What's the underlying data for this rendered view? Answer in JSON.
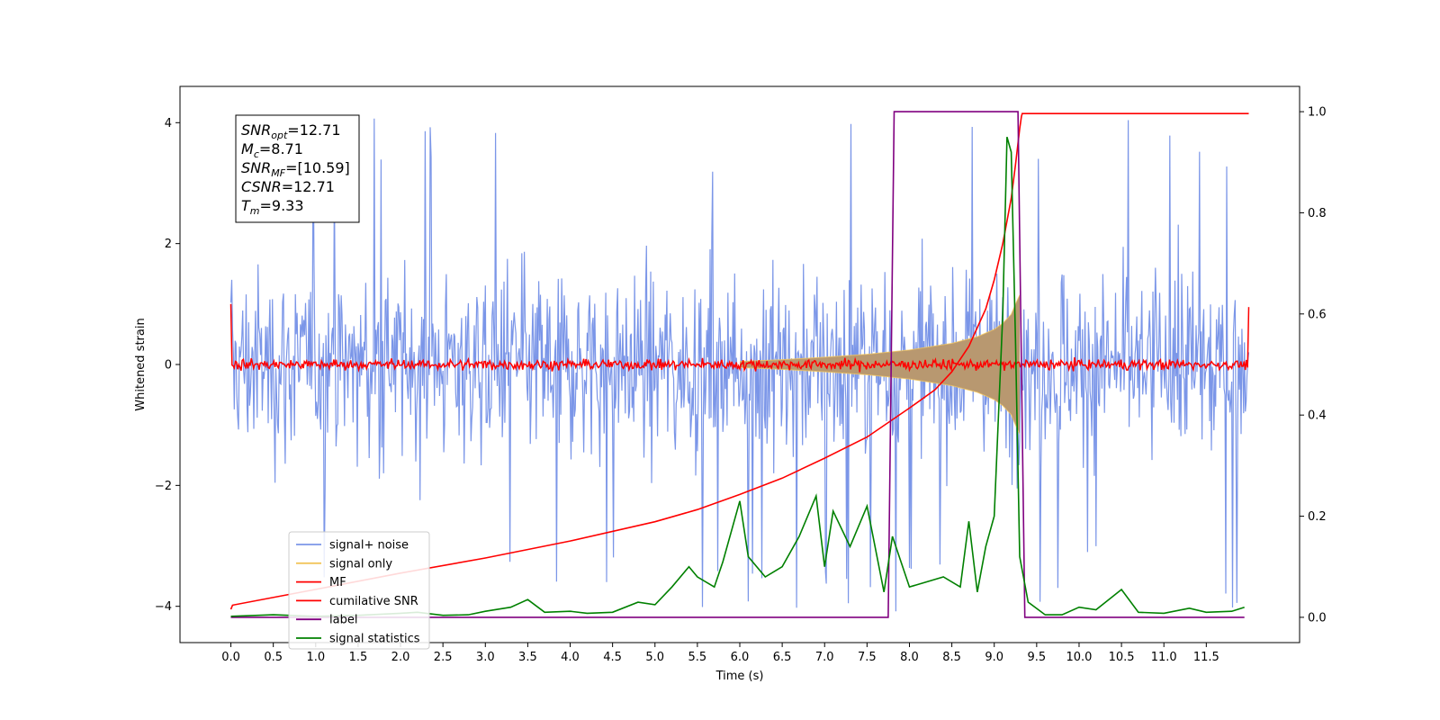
{
  "chart_data": {
    "type": "line",
    "xlabel": "Time (s)",
    "ylabel": "Whitened strain",
    "xlim": [
      -0.6,
      12.6
    ],
    "ylim": [
      -4.6,
      4.6
    ],
    "y2lim": [
      -0.05,
      1.05
    ],
    "xticks": [
      "0.0",
      "0.5",
      "1.0",
      "1.5",
      "2.0",
      "2.5",
      "3.0",
      "3.5",
      "4.0",
      "4.5",
      "5.0",
      "5.5",
      "6.0",
      "6.5",
      "7.0",
      "7.5",
      "8.0",
      "8.5",
      "9.0",
      "9.5",
      "10.0",
      "10.5",
      "11.0",
      "11.5"
    ],
    "yticks": [
      "4",
      "2",
      "0",
      "−2",
      "−4"
    ],
    "y2ticks": [
      "1.0",
      "0.8",
      "0.6",
      "0.4",
      "0.2",
      "0.0"
    ],
    "grid": false,
    "legend_position": "lower-left",
    "colors": {
      "signal_noise": "#7b96e8",
      "signal_only": "#f2c55c",
      "signal_fill": "#b89870",
      "mf": "#ff0000",
      "cumulative_snr": "#ff0000",
      "label": "#800080",
      "signal_statistics": "#008000"
    },
    "info_box": [
      {
        "sym": "SNR",
        "sub": "opt",
        "val": "=12.71"
      },
      {
        "sym": "M",
        "sub": "c",
        "val": "=8.71"
      },
      {
        "sym": "SNR",
        "sub": "MF",
        "val": "=[10.59]"
      },
      {
        "sym": "CSNR",
        "sub": "",
        "val": "=12.71"
      },
      {
        "sym": "T",
        "sub": "m",
        "val": "=9.33"
      }
    ],
    "legend": [
      "signal+ noise",
      "signal only",
      "MF",
      "cumilative SNR",
      "label",
      "signal statistics"
    ],
    "series": [
      {
        "name": "signal+ noise",
        "axis": "left",
        "x_range": [
          0.0,
          12.0
        ],
        "envelope_typical": [
          -2.5,
          2.5
        ],
        "extremes": [
          -4.15,
          4.15
        ],
        "samples_approx": 1200
      },
      {
        "name": "signal only",
        "axis": "left",
        "envelope": {
          "x": [
            6.0,
            6.5,
            7.0,
            7.5,
            8.0,
            8.5,
            8.8,
            9.0,
            9.1,
            9.2,
            9.25,
            9.3
          ],
          "amplitude": [
            0.05,
            0.08,
            0.12,
            0.17,
            0.24,
            0.35,
            0.46,
            0.58,
            0.68,
            0.83,
            1.0,
            1.15
          ]
        }
      },
      {
        "name": "MF",
        "axis": "left",
        "x_range": [
          0.0,
          12.0
        ],
        "baseline": 0.0,
        "noise_amplitude": 0.12,
        "edge_values": [
          1.0,
          0.95
        ]
      },
      {
        "name": "cumilative SNR",
        "axis": "left",
        "x": [
          0.0,
          0.02,
          1.0,
          2.0,
          3.0,
          4.0,
          5.0,
          5.5,
          6.0,
          6.5,
          7.0,
          7.5,
          8.0,
          8.3,
          8.5,
          8.7,
          8.9,
          9.0,
          9.1,
          9.2,
          9.25,
          9.3,
          9.32,
          9.33,
          12.0
        ],
        "values": [
          -4.05,
          -3.98,
          -3.72,
          -3.45,
          -3.2,
          -2.92,
          -2.6,
          -2.4,
          -2.15,
          -1.88,
          -1.55,
          -1.2,
          -0.72,
          -0.42,
          -0.12,
          0.3,
          0.92,
          1.4,
          2.0,
          2.75,
          3.3,
          3.9,
          4.1,
          4.15,
          4.15
        ]
      },
      {
        "name": "label",
        "axis": "right",
        "x": [
          0.0,
          7.75,
          7.82,
          9.28,
          9.36,
          11.95
        ],
        "values": [
          0.0,
          0.0,
          1.0,
          1.0,
          0.0,
          0.0
        ]
      },
      {
        "name": "signal statistics",
        "axis": "right",
        "x": [
          0.0,
          0.5,
          1.0,
          1.5,
          2.0,
          2.2,
          2.5,
          2.8,
          3.0,
          3.3,
          3.5,
          3.7,
          4.0,
          4.2,
          4.5,
          4.8,
          5.0,
          5.2,
          5.4,
          5.5,
          5.7,
          5.8,
          6.0,
          6.1,
          6.3,
          6.5,
          6.7,
          6.9,
          7.0,
          7.1,
          7.3,
          7.5,
          7.7,
          7.8,
          8.0,
          8.2,
          8.4,
          8.6,
          8.7,
          8.8,
          8.9,
          9.0,
          9.1,
          9.15,
          9.2,
          9.25,
          9.3,
          9.4,
          9.6,
          9.8,
          10.0,
          10.2,
          10.5,
          10.7,
          11.0,
          11.3,
          11.5,
          11.8,
          11.95
        ],
        "values": [
          0.002,
          0.005,
          0.002,
          0.004,
          0.008,
          0.01,
          0.004,
          0.005,
          0.012,
          0.02,
          0.035,
          0.01,
          0.012,
          0.008,
          0.01,
          0.03,
          0.025,
          0.06,
          0.1,
          0.08,
          0.06,
          0.11,
          0.23,
          0.12,
          0.08,
          0.1,
          0.16,
          0.24,
          0.1,
          0.21,
          0.14,
          0.22,
          0.05,
          0.16,
          0.06,
          0.07,
          0.08,
          0.06,
          0.19,
          0.05,
          0.14,
          0.2,
          0.6,
          0.95,
          0.92,
          0.55,
          0.12,
          0.03,
          0.005,
          0.005,
          0.02,
          0.015,
          0.055,
          0.01,
          0.008,
          0.018,
          0.01,
          0.012,
          0.02
        ]
      }
    ]
  }
}
